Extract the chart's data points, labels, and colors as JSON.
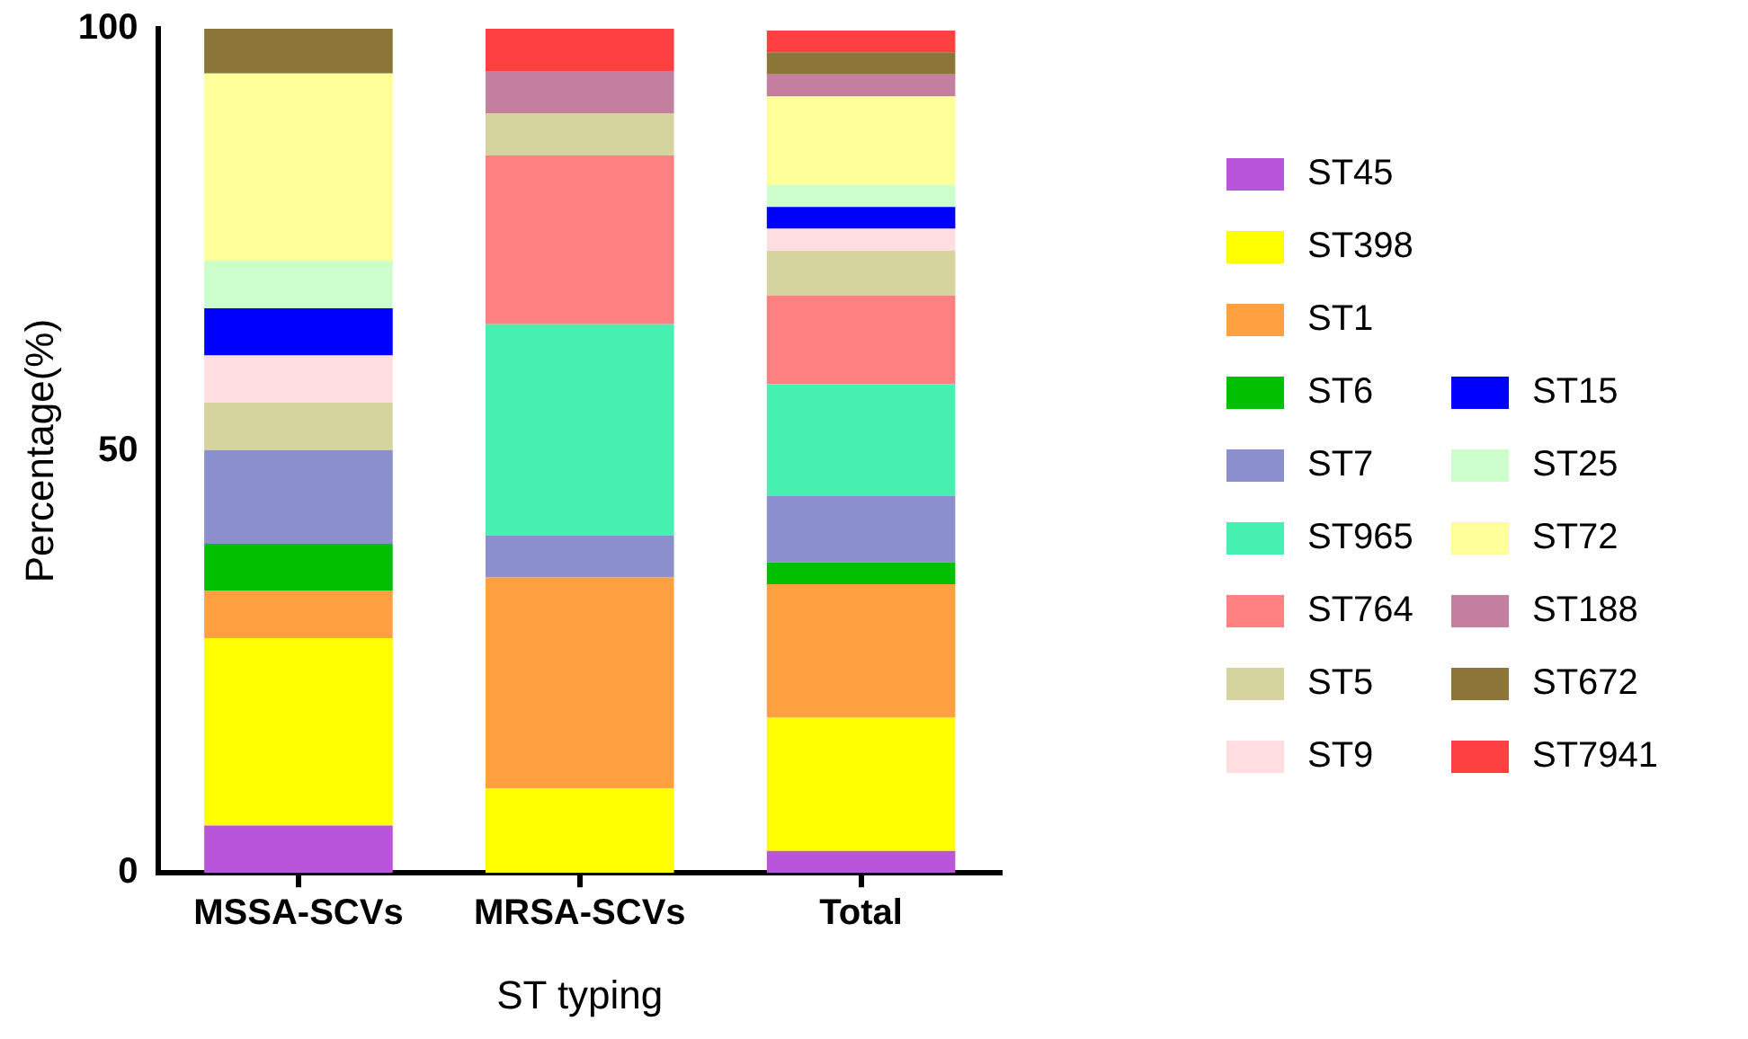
{
  "chart_data": {
    "type": "bar",
    "stacked": true,
    "xlabel": "ST typing",
    "ylabel": "Percentage(%)",
    "categories": [
      "MSSA-SCVs",
      "MRSA-SCVs",
      "Total"
    ],
    "ylim": [
      0,
      100
    ],
    "yticks": [
      0,
      50,
      100
    ],
    "grid": false,
    "legend": "right",
    "series": [
      {
        "name": "ST45",
        "color": "#b955d8",
        "values": [
          5.6,
          0,
          2.6
        ]
      },
      {
        "name": "ST398",
        "color": "#ffff00",
        "values": [
          22.2,
          10,
          15.8
        ]
      },
      {
        "name": "ST1",
        "color": "#ffa040",
        "values": [
          5.6,
          25,
          15.8
        ]
      },
      {
        "name": "ST6",
        "color": "#00c000",
        "values": [
          5.6,
          0,
          2.6
        ]
      },
      {
        "name": "ST7",
        "color": "#8b90cc",
        "values": [
          11.1,
          5,
          7.9
        ]
      },
      {
        "name": "ST965",
        "color": "#45f0b0",
        "values": [
          0,
          25,
          13.2
        ]
      },
      {
        "name": "ST764",
        "color": "#ff8080",
        "values": [
          0,
          20,
          10.5
        ]
      },
      {
        "name": "ST5",
        "color": "#d6d49e",
        "values": [
          5.6,
          5,
          5.3
        ]
      },
      {
        "name": "ST9",
        "color": "#ffdde1",
        "values": [
          5.6,
          0,
          2.6
        ]
      },
      {
        "name": "ST15",
        "color": "#0000ff",
        "values": [
          5.6,
          0,
          2.6
        ]
      },
      {
        "name": "ST25",
        "color": "#ccffcc",
        "values": [
          5.6,
          0,
          2.6
        ]
      },
      {
        "name": "ST72",
        "color": "#ffff99",
        "values": [
          22.2,
          0,
          10.5
        ]
      },
      {
        "name": "ST188",
        "color": "#c27fa0",
        "values": [
          0,
          5,
          2.6
        ]
      },
      {
        "name": "ST672",
        "color": "#8b7538",
        "values": [
          5.5,
          0,
          2.6
        ]
      },
      {
        "name": "ST7941",
        "color": "#ff4040",
        "values": [
          0,
          5,
          2.6
        ]
      }
    ]
  }
}
